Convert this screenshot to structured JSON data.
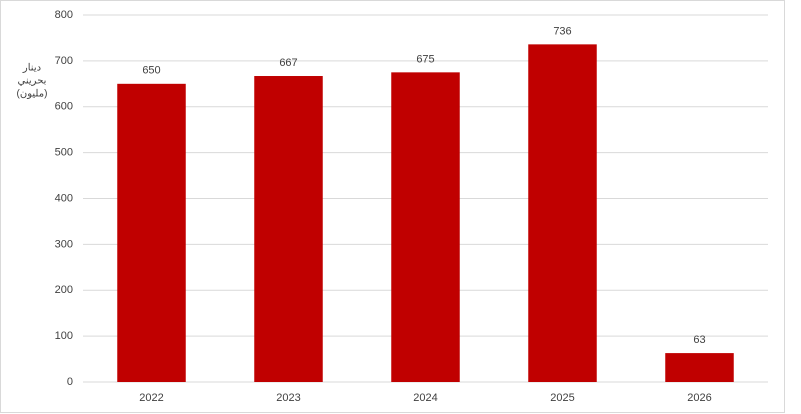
{
  "chart_data": {
    "type": "bar",
    "ylabel": [
      "دينار",
      "بحريني",
      "(مليون)"
    ],
    "categories": [
      "2022",
      "2023",
      "2024",
      "2025",
      "2026"
    ],
    "values": [
      650,
      667,
      675,
      736,
      63
    ],
    "color": "#c00000",
    "ylim": [
      0,
      800
    ],
    "yticks": [
      0,
      100,
      200,
      300,
      400,
      500,
      600,
      700,
      800
    ],
    "grid": true
  }
}
